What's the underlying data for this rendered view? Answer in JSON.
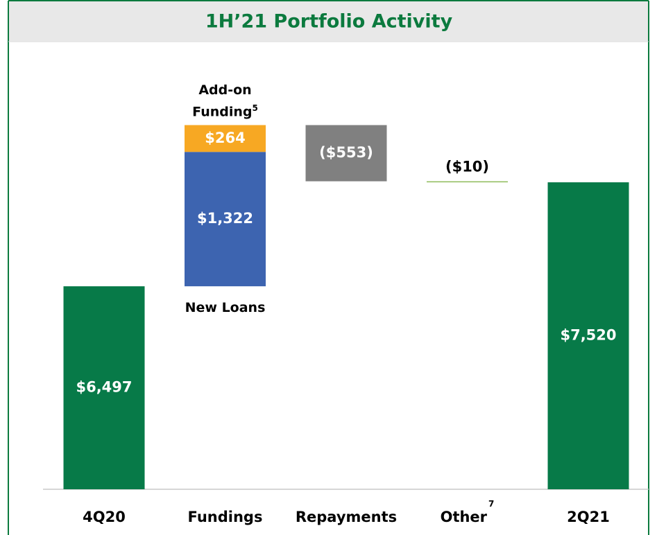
{
  "chart_data": {
    "type": "waterfall",
    "title": "1H’21 Portfolio Activity",
    "ylim": [
      4500,
      8700
    ],
    "steps": [
      {
        "category": "4Q20",
        "total": true,
        "segments": [
          {
            "value": 6497,
            "value_label": "$6,497",
            "color": "#077a48"
          }
        ]
      },
      {
        "category": "Fundings",
        "segments": [
          {
            "name": "New Loans",
            "value": 1322,
            "value_label": "$1,322",
            "color": "#3d64b0"
          },
          {
            "name": "Add-on Funding",
            "note": "5",
            "value": 264,
            "value_label": "$264",
            "color": "#f7a823"
          }
        ]
      },
      {
        "category": "Repayments",
        "segments": [
          {
            "value": -553,
            "value_label": "($553)",
            "color": "#808080"
          }
        ]
      },
      {
        "category": "Other",
        "note": "7",
        "segments": [
          {
            "value": -10,
            "value_label": "($10)",
            "color": "#8dbb5a"
          }
        ]
      },
      {
        "category": "2Q21",
        "total": true,
        "segments": [
          {
            "value": 7520,
            "value_label": "$7,520",
            "color": "#077a48"
          }
        ]
      }
    ]
  }
}
